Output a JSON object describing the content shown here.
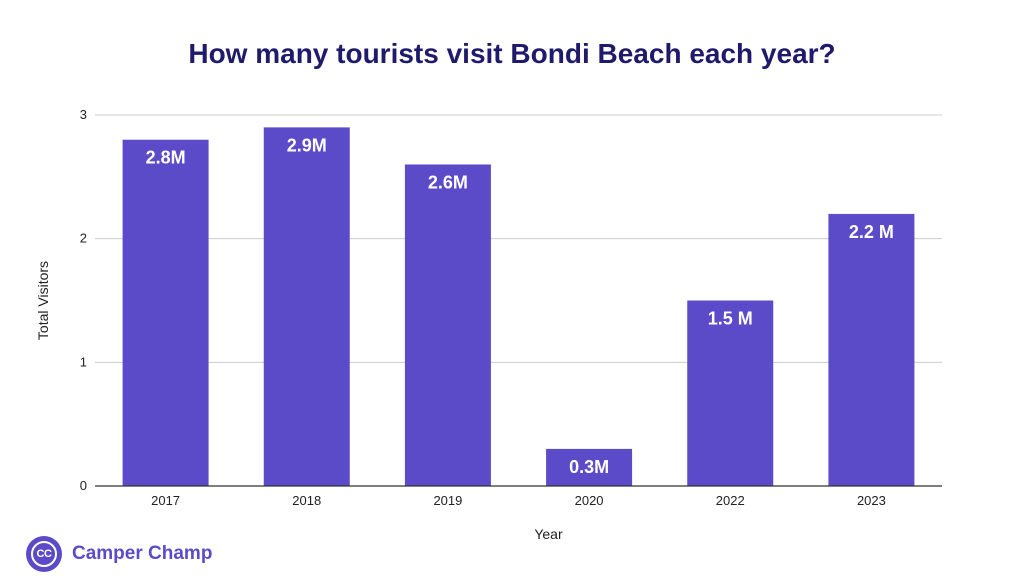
{
  "chart_data": {
    "type": "bar",
    "title": "How many tourists visit Bondi Beach each year?",
    "xlabel": "Year",
    "ylabel": "Total Visitors",
    "categories": [
      "2017",
      "2018",
      "2019",
      "2020",
      "2022",
      "2023"
    ],
    "values": [
      2.8,
      2.9,
      2.6,
      0.3,
      1.5,
      2.2
    ],
    "data_labels": [
      "2.8M",
      "2.9M",
      "2.6M",
      "0.3M",
      "1.5 M",
      "2.2 M"
    ],
    "ylim": [
      0,
      3
    ],
    "yticks": [
      "0",
      "1",
      "2",
      "3"
    ],
    "grid": true,
    "legend": "none",
    "bar_color": "#5b4bc9",
    "title_color": "#1f1a6b"
  },
  "brand": {
    "logo_text": "CC",
    "name": "Camper Champ",
    "color": "#5b4bc9"
  }
}
